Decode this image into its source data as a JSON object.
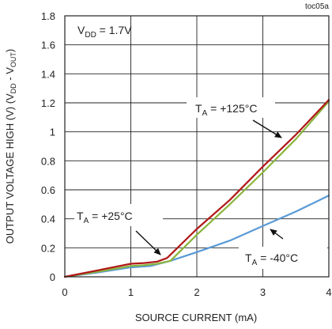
{
  "chart_data": {
    "type": "line",
    "figure_id": "toc05a",
    "xlabel": "SOURCE CURRENT (mA)",
    "ylabel_main": "OUTPUT VOLTAGE HIGH (V) (V",
    "ylabel_sub1": "DD",
    "ylabel_mid": " - V",
    "ylabel_sub2": "OUT",
    "ylabel_end": ")",
    "xlim": [
      0,
      4
    ],
    "ylim": [
      0,
      1.8
    ],
    "x_ticks": [
      0,
      1,
      2,
      3,
      4
    ],
    "y_ticks": [
      0,
      0.2,
      0.4,
      0.6,
      0.8,
      1,
      1.2,
      1.4,
      1.6,
      1.8
    ],
    "x_tick_labels": [
      "0",
      "1",
      "2",
      "3",
      "4"
    ],
    "y_tick_labels": [
      "0",
      "0.2",
      "0.4",
      "0.6",
      "0.8",
      "1",
      "1.2",
      "1.4",
      "1.6",
      "1.8"
    ],
    "grid": true,
    "condition": {
      "main": "V",
      "sub": "DD",
      "rest": " = 1.7V"
    },
    "series": [
      {
        "name": "T_A = +125°C",
        "color": "#b01818",
        "points": [
          [
            0,
            0
          ],
          [
            0.5,
            0.045
          ],
          [
            1,
            0.09
          ],
          [
            1.2,
            0.095
          ],
          [
            1.4,
            0.105
          ],
          [
            1.55,
            0.13
          ],
          [
            2,
            0.33
          ],
          [
            2.5,
            0.53
          ],
          [
            3,
            0.76
          ],
          [
            3.5,
            0.98
          ],
          [
            4,
            1.22
          ]
        ]
      },
      {
        "name": "T_A = +25°C",
        "color": "#8ab43c",
        "points": [
          [
            0,
            0
          ],
          [
            0.5,
            0.035
          ],
          [
            1,
            0.075
          ],
          [
            1.2,
            0.08
          ],
          [
            1.4,
            0.09
          ],
          [
            1.6,
            0.11
          ],
          [
            2,
            0.29
          ],
          [
            2.5,
            0.5
          ],
          [
            3,
            0.72
          ],
          [
            3.5,
            0.95
          ],
          [
            4,
            1.21
          ]
        ]
      },
      {
        "name": "T_A = -40°C",
        "color": "#5a9ad6",
        "points": [
          [
            0,
            0
          ],
          [
            0.5,
            0.03
          ],
          [
            1,
            0.065
          ],
          [
            1.3,
            0.075
          ],
          [
            1.6,
            0.11
          ],
          [
            2,
            0.17
          ],
          [
            2.5,
            0.25
          ],
          [
            3,
            0.35
          ],
          [
            3.5,
            0.45
          ],
          [
            4,
            0.56
          ]
        ]
      }
    ],
    "annotations": [
      {
        "main": "T",
        "sub": "A",
        "rest": " = +125°C",
        "series": "T_A = +125°C"
      },
      {
        "main": "T",
        "sub": "A",
        "rest": " = +25°C",
        "series": "T_A = +25°C"
      },
      {
        "main": "T",
        "sub": "A",
        "rest": " = -40°C",
        "series": "T_A = -40°C"
      }
    ]
  }
}
